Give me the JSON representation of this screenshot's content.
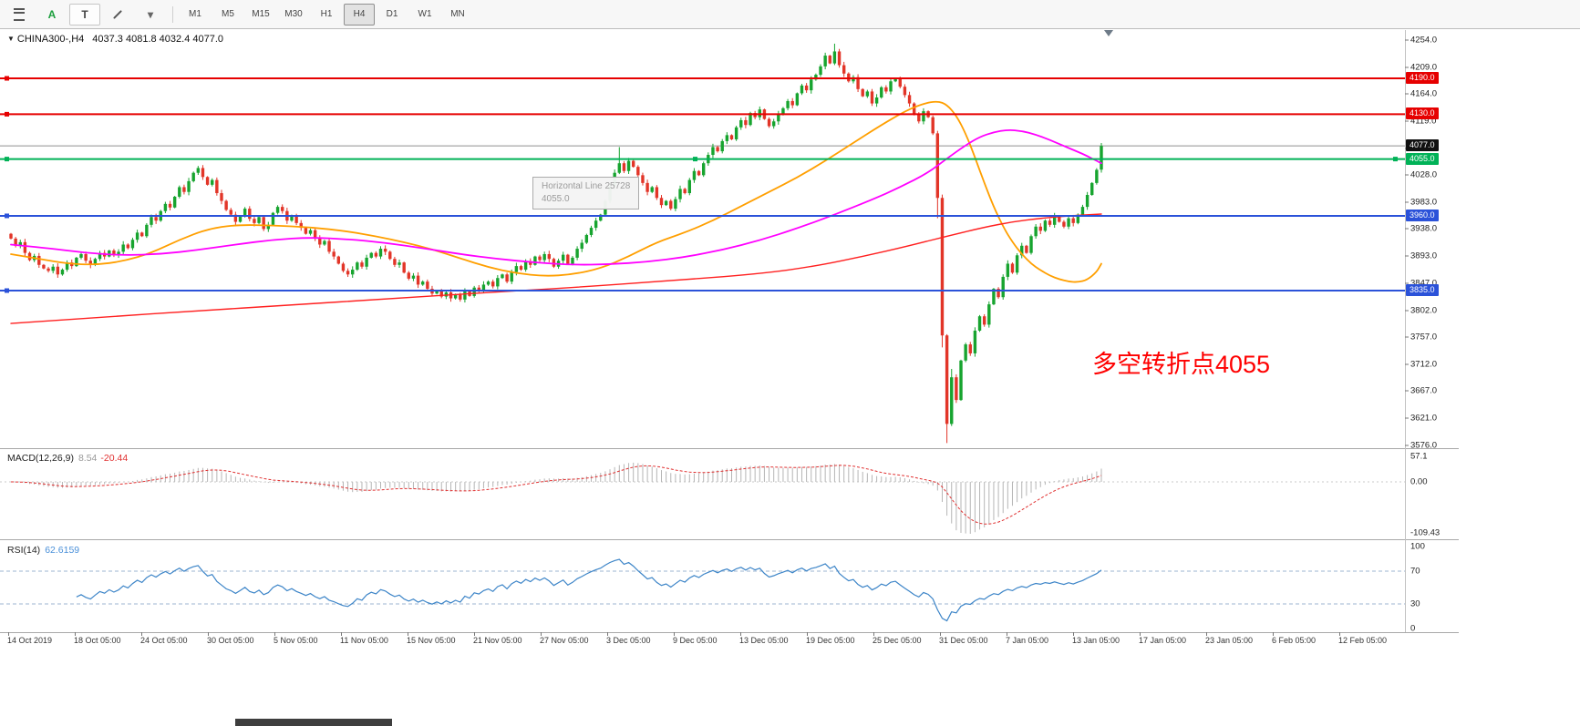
{
  "toolbar": {
    "icons": [
      {
        "id": "chart-menu",
        "glyph": "burger"
      },
      {
        "id": "annotate-a",
        "glyph": "A",
        "color": "#1b9e3c"
      },
      {
        "id": "text-tool",
        "glyph": "T",
        "color": "#444444",
        "boxed": true
      },
      {
        "id": "draw-tool",
        "glyph": "pencil"
      },
      {
        "id": "draw-caret",
        "glyph": "▾",
        "color": "#666666"
      }
    ],
    "timeframes": [
      "M1",
      "M5",
      "M15",
      "M30",
      "H1",
      "H4",
      "D1",
      "W1",
      "MN"
    ],
    "active_timeframe": "H4"
  },
  "chart": {
    "tooltip": {
      "line1": "Horizontal Line 25728",
      "line2": "4055.0"
    },
    "annotation": {
      "text": "多空转折点4055",
      "color": "#ff0000"
    }
  },
  "chart_data": {
    "type": "candlestick",
    "symbol_period": "CHINA300-,H4",
    "ohlc_text": "4037.3 4081.8 4032.4 4077.0",
    "open": 4037.3,
    "high": 4081.8,
    "low": 4032.4,
    "close": 4077.0,
    "current_price": 4077.0,
    "current_price_label": "4077.0",
    "y_axis": {
      "max": 4254.0,
      "min": 3576.0,
      "ticks": [
        "4254.0",
        "4209.0",
        "4164.0",
        "4119.0",
        "4073.0",
        "4028.0",
        "3983.0",
        "3938.0",
        "3893.0",
        "3847.0",
        "3802.0",
        "3757.0",
        "3712.0",
        "3667.0",
        "3621.0",
        "3576.0"
      ]
    },
    "x_axis": {
      "labels": [
        "14 Oct 2019",
        "18 Oct 05:00",
        "24 Oct 05:00",
        "30 Oct 05:00",
        "5 Nov 05:00",
        "11 Nov 05:00",
        "15 Nov 05:00",
        "21 Nov 05:00",
        "27 Nov 05:00",
        "3 Dec 05:00",
        "9 Dec 05:00",
        "13 Dec 05:00",
        "19 Dec 05:00",
        "25 Dec 05:00",
        "31 Dec 05:00",
        "7 Jan 05:00",
        "13 Jan 05:00",
        "17 Jan 05:00",
        "23 Jan 05:00",
        "6 Feb 05:00",
        "12 Feb 05:00"
      ]
    },
    "hlines": [
      {
        "price": 4190.0,
        "label": "4190.0",
        "color": "#e60000",
        "width": 2,
        "handles": 1
      },
      {
        "price": 4130.0,
        "label": "4130.0",
        "color": "#e60000",
        "width": 2,
        "handles": 1
      },
      {
        "price": 4055.0,
        "label": "4055.0",
        "color": "#00b257",
        "width": 2,
        "handles": 3
      },
      {
        "price": 3960.0,
        "label": "3960.0",
        "color": "#2b52d9",
        "width": 2,
        "handles": 1
      },
      {
        "price": 3835.0,
        "label": "3835.0",
        "color": "#2b52d9",
        "width": 2,
        "handles": 1
      }
    ],
    "candles": {
      "first_open": 3930,
      "closes": [
        3922,
        3910,
        3916,
        3898,
        3886,
        3893,
        3878,
        3872,
        3868,
        3875,
        3862,
        3870,
        3882,
        3876,
        3890,
        3896,
        3885,
        3878,
        3888,
        3898,
        3892,
        3902,
        3894,
        3900,
        3912,
        3906,
        3920,
        3932,
        3926,
        3945,
        3958,
        3952,
        3968,
        3980,
        3974,
        3992,
        4008,
        4000,
        4018,
        4032,
        4040,
        4025,
        4012,
        4020,
        3998,
        3985,
        3970,
        3962,
        3950,
        3960,
        3972,
        3955,
        3948,
        3958,
        3938,
        3945,
        3965,
        3975,
        3968,
        3952,
        3960,
        3948,
        3940,
        3930,
        3936,
        3922,
        3912,
        3918,
        3900,
        3892,
        3880,
        3868,
        3862,
        3870,
        3882,
        3875,
        3890,
        3898,
        3892,
        3905,
        3900,
        3888,
        3878,
        3882,
        3865,
        3855,
        3860,
        3845,
        3850,
        3838,
        3830,
        3835,
        3825,
        3832,
        3822,
        3828,
        3820,
        3834,
        3826,
        3840,
        3836,
        3845,
        3850,
        3842,
        3856,
        3862,
        3850,
        3866,
        3876,
        3870,
        3884,
        3878,
        3892,
        3886,
        3896,
        3888,
        3875,
        3885,
        3895,
        3880,
        3890,
        3905,
        3915,
        3928,
        3940,
        3952,
        3962,
        3985,
        4010,
        4032,
        4048,
        4035,
        4052,
        4042,
        4028,
        4015,
        4000,
        4008,
        3990,
        3978,
        3985,
        3972,
        3988,
        4005,
        3998,
        4020,
        4035,
        4028,
        4048,
        4062,
        4075,
        4068,
        4085,
        4095,
        4088,
        4108,
        4120,
        4112,
        4132,
        4125,
        4138,
        4122,
        4110,
        4118,
        4130,
        4140,
        4152,
        4145,
        4165,
        4178,
        4170,
        4188,
        4196,
        4210,
        4228,
        4215,
        4235,
        4212,
        4198,
        4185,
        4192,
        4172,
        4160,
        4168,
        4148,
        4158,
        4175,
        4168,
        4185,
        4190,
        4176,
        4162,
        4148,
        4130,
        4118,
        4135,
        4125,
        4098,
        3990,
        3760,
        3612,
        3690,
        3652,
        3718,
        3745,
        3730,
        3768,
        3792,
        3778,
        3812,
        3838,
        3824,
        3858,
        3880,
        3865,
        3894,
        3910,
        3898,
        3926,
        3942,
        3935,
        3952,
        3945,
        3960,
        3950,
        3942,
        3956,
        3948,
        3962,
        3975,
        3995,
        4015,
        4037,
        4077
      ],
      "overrides": {
        "130": {
          "high": 4075
        },
        "176": {
          "high": 4248
        },
        "198": {
          "low": 3956
        },
        "199": {
          "low": 3740
        },
        "200": {
          "low": 3580
        },
        "201": {
          "high": 3704
        },
        "233": {
          "open": 4037.3,
          "high": 4081.8,
          "low": 4032.4,
          "close": 4077.0
        }
      }
    },
    "ma_lines": [
      {
        "name": "ma-orange",
        "color": "#ff9f00",
        "width": 1.8,
        "points": [
          [
            0,
            3896
          ],
          [
            6,
            3888
          ],
          [
            12,
            3880
          ],
          [
            18,
            3878
          ],
          [
            24,
            3884
          ],
          [
            30,
            3898
          ],
          [
            36,
            3920
          ],
          [
            42,
            3938
          ],
          [
            48,
            3945
          ],
          [
            56,
            3944
          ],
          [
            64,
            3941
          ],
          [
            72,
            3934
          ],
          [
            78,
            3926
          ],
          [
            84,
            3916
          ],
          [
            90,
            3904
          ],
          [
            96,
            3889
          ],
          [
            102,
            3874
          ],
          [
            108,
            3864
          ],
          [
            114,
            3859
          ],
          [
            120,
            3862
          ],
          [
            126,
            3872
          ],
          [
            132,
            3892
          ],
          [
            138,
            3916
          ],
          [
            144,
            3932
          ],
          [
            150,
            3952
          ],
          [
            156,
            3976
          ],
          [
            162,
            4000
          ],
          [
            168,
            4024
          ],
          [
            174,
            4052
          ],
          [
            180,
            4082
          ],
          [
            186,
            4112
          ],
          [
            191,
            4135
          ],
          [
            195,
            4148
          ],
          [
            198,
            4152
          ],
          [
            200,
            4146
          ],
          [
            202,
            4128
          ],
          [
            204,
            4098
          ],
          [
            206,
            4058
          ],
          [
            208,
            4015
          ],
          [
            210,
            3975
          ],
          [
            212,
            3942
          ],
          [
            214,
            3916
          ],
          [
            216,
            3896
          ],
          [
            218,
            3880
          ],
          [
            220,
            3869
          ],
          [
            222,
            3860
          ],
          [
            224,
            3854
          ],
          [
            226,
            3850
          ],
          [
            228,
            3849
          ],
          [
            230,
            3853
          ],
          [
            232,
            3866
          ],
          [
            233,
            3880
          ]
        ]
      },
      {
        "name": "ma-magenta",
        "color": "#ff00ff",
        "width": 1.8,
        "points": [
          [
            0,
            3912
          ],
          [
            8,
            3906
          ],
          [
            16,
            3898
          ],
          [
            24,
            3894
          ],
          [
            32,
            3896
          ],
          [
            40,
            3903
          ],
          [
            48,
            3912
          ],
          [
            56,
            3920
          ],
          [
            64,
            3924
          ],
          [
            72,
            3921
          ],
          [
            80,
            3915
          ],
          [
            88,
            3906
          ],
          [
            96,
            3896
          ],
          [
            104,
            3888
          ],
          [
            112,
            3882
          ],
          [
            120,
            3878
          ],
          [
            128,
            3879
          ],
          [
            136,
            3883
          ],
          [
            144,
            3891
          ],
          [
            152,
            3903
          ],
          [
            160,
            3919
          ],
          [
            168,
            3939
          ],
          [
            176,
            3962
          ],
          [
            184,
            3987
          ],
          [
            190,
            4008
          ],
          [
            196,
            4032
          ],
          [
            200,
            4056
          ],
          [
            204,
            4078
          ],
          [
            207,
            4092
          ],
          [
            210,
            4100
          ],
          [
            213,
            4104
          ],
          [
            216,
            4102
          ],
          [
            219,
            4096
          ],
          [
            222,
            4087
          ],
          [
            225,
            4077
          ],
          [
            228,
            4067
          ],
          [
            230,
            4060
          ],
          [
            232,
            4052
          ],
          [
            233,
            4048
          ]
        ]
      },
      {
        "name": "ma-red",
        "color": "#ff2020",
        "width": 1.4,
        "points": [
          [
            0,
            3780
          ],
          [
            20,
            3791
          ],
          [
            40,
            3801
          ],
          [
            60,
            3811
          ],
          [
            80,
            3821
          ],
          [
            100,
            3831
          ],
          [
            120,
            3840
          ],
          [
            140,
            3851
          ],
          [
            160,
            3863
          ],
          [
            172,
            3876
          ],
          [
            182,
            3892
          ],
          [
            192,
            3910
          ],
          [
            200,
            3926
          ],
          [
            208,
            3941
          ],
          [
            214,
            3950
          ],
          [
            220,
            3956
          ],
          [
            226,
            3960
          ],
          [
            233,
            3963
          ]
        ]
      }
    ],
    "macd": {
      "name": "MACD(12,26,9)",
      "value_main_text": "8.54",
      "value_signal_text": "-20.44",
      "fast": 12,
      "slow": 26,
      "signal": 9,
      "axis_labels": [
        "57.1",
        "0.00",
        "-109.43"
      ]
    },
    "rsi": {
      "name": "RSI(14)",
      "value_text": "62.6159",
      "period": 14,
      "levels": [
        70,
        30
      ],
      "axis_labels": [
        "100",
        "70",
        "30",
        "0"
      ]
    }
  }
}
